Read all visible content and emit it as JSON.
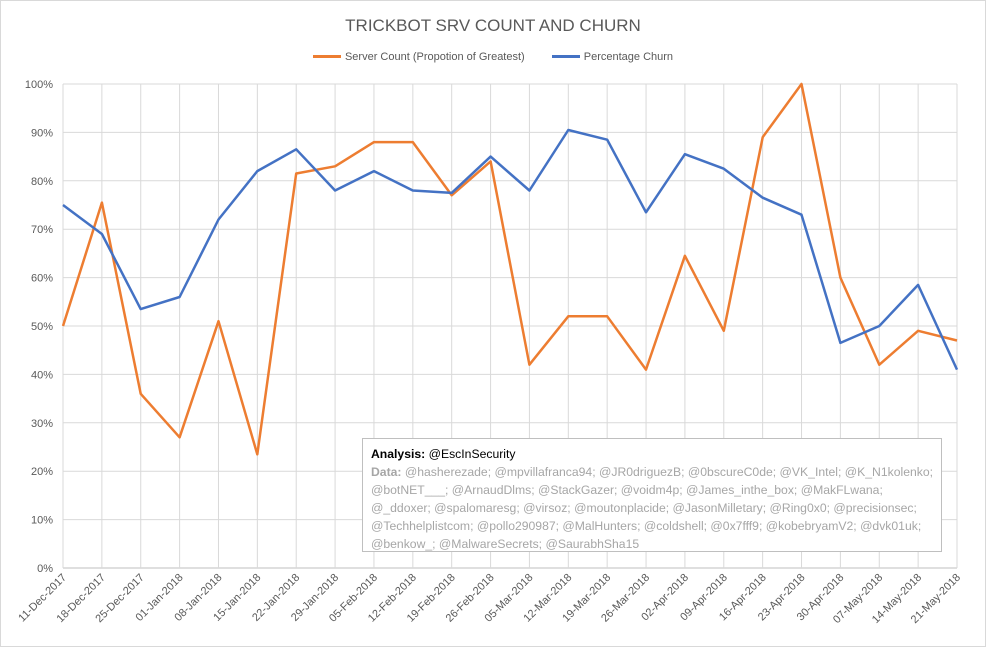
{
  "chart_data": {
    "type": "line",
    "title": "TRICKBOT SRV COUNT AND CHURN",
    "xlabel": "",
    "ylabel": "",
    "ylim": [
      0,
      100
    ],
    "y_ticks": [
      "0%",
      "10%",
      "20%",
      "30%",
      "40%",
      "50%",
      "60%",
      "70%",
      "80%",
      "90%",
      "100%"
    ],
    "grid": true,
    "legend_position": "top",
    "categories": [
      "11-Dec-2017",
      "18-Dec-2017",
      "25-Dec-2017",
      "01-Jan-2018",
      "08-Jan-2018",
      "15-Jan-2018",
      "22-Jan-2018",
      "29-Jan-2018",
      "05-Feb-2018",
      "12-Feb-2018",
      "19-Feb-2018",
      "26-Feb-2018",
      "05-Mar-2018",
      "12-Mar-2018",
      "19-Mar-2018",
      "26-Mar-2018",
      "02-Apr-2018",
      "09-Apr-2018",
      "16-Apr-2018",
      "23-Apr-2018",
      "30-Apr-2018",
      "07-May-2018",
      "14-May-2018",
      "21-May-2018"
    ],
    "series": [
      {
        "name": "Server Count (Propotion of Greatest)",
        "color": "#ed7d31",
        "values": [
          50,
          75.5,
          36,
          27,
          51,
          23.5,
          81.5,
          83,
          88,
          88,
          77,
          84,
          42,
          52,
          52,
          41,
          64.5,
          49,
          89,
          100,
          60,
          42,
          49,
          47
        ]
      },
      {
        "name": "Percentage Churn",
        "color": "#4472c4",
        "values": [
          75,
          69,
          53.5,
          56,
          72,
          82,
          86.5,
          78,
          82,
          78,
          77.5,
          85,
          78,
          90.5,
          88.5,
          73.5,
          85.5,
          82.5,
          76.5,
          73,
          46.5,
          50,
          58.5,
          41
        ]
      }
    ]
  },
  "annotation": {
    "analysis_label": "Analysis:",
    "analysis_text": " @EscInSecurity",
    "data_label": "Data:",
    "data_text": " @hasherezade; @mpvillafranca94; @JR0driguezB; @0bscureC0de; @VK_Intel; @K_N1kolenko; @botNET___; @ArnaudDlms; @StackGazer; @voidm4p; @James_inthe_box; @MakFLwana; @_ddoxer; @spalomaresg; @virsoz; @moutonplacide; @JasonMilletary; @Ring0x0; @precisionsec; @Techhelplistcom; @pollo290987; @MalHunters; @coldshell; @0x7fff9; @kobebryamV2; @dvk01uk; @benkow_; @MalwareSecrets; @SaurabhSha15"
  }
}
